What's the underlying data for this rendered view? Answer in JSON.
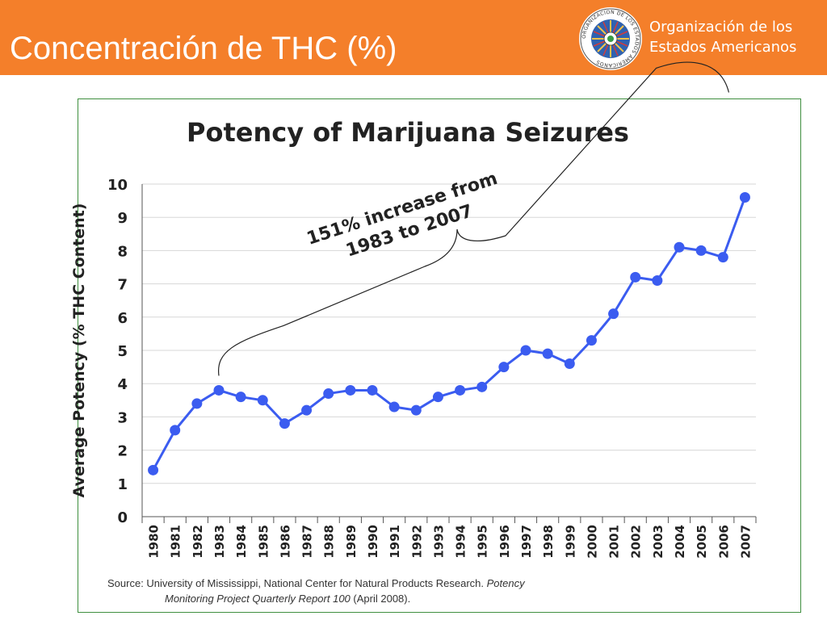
{
  "slide": {
    "title": "Concentración de THC (%)",
    "org_line1": "Organización de los",
    "org_line2": "Estados Americanos",
    "seal_text": "ORGANIZACION DE LOS ESTADOS AMERICANOS",
    "colors": {
      "header": "#f47f2a",
      "frame": "#3f8f3f"
    }
  },
  "chart_data": {
    "type": "line",
    "title": "Potency of Marijuana Seizures",
    "xlabel": "",
    "ylabel": "Average Potency (% THC Content)",
    "ylim": [
      0,
      10
    ],
    "yticks": [
      "0",
      "1",
      "2",
      "3",
      "4",
      "5",
      "6",
      "7",
      "8",
      "9",
      "10"
    ],
    "grid": true,
    "color": "#3b5cf0",
    "categories": [
      "1980",
      "1981",
      "1982",
      "1983",
      "1984",
      "1985",
      "1986",
      "1987",
      "1988",
      "1989",
      "1990",
      "1991",
      "1992",
      "1993",
      "1994",
      "1995",
      "1996",
      "1997",
      "1998",
      "1999",
      "2000",
      "2001",
      "2002",
      "2003",
      "2004",
      "2005",
      "2006",
      "2007"
    ],
    "values": [
      1.4,
      2.6,
      3.4,
      3.8,
      3.6,
      3.5,
      2.8,
      3.2,
      3.7,
      3.8,
      3.8,
      3.3,
      3.2,
      3.6,
      3.8,
      3.9,
      4.5,
      5.0,
      4.9,
      4.6,
      5.3,
      6.1,
      7.2,
      7.1,
      8.1,
      8.0,
      7.8,
      9.6
    ],
    "annotation": {
      "line1": "151% increase from",
      "line2": "1983 to 2007",
      "from_index": 3,
      "to_index": 27
    },
    "source": {
      "prefix": "Source: University of Mississippi, National Center for Natural Products Research.",
      "italic1": "Potency",
      "italic2": "Monitoring Project Quarterly Report 100",
      "suffix": "(April 2008)."
    }
  }
}
